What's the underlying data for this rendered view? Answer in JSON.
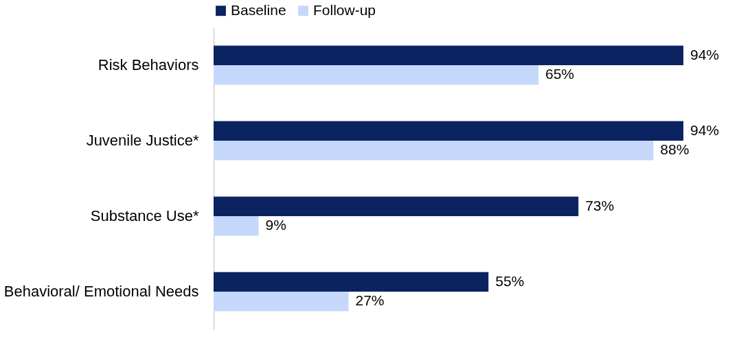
{
  "chart_data": {
    "type": "bar",
    "orientation": "horizontal",
    "categories": [
      "Risk Behaviors",
      "Juvenile Justice*",
      "Substance Use*",
      "Behavioral/ Emotional Needs"
    ],
    "series": [
      {
        "name": "Baseline",
        "color": "#0b2361",
        "values": [
          94,
          94,
          73,
          55
        ],
        "value_labels": [
          "94%",
          "94%",
          "73%",
          "55%"
        ]
      },
      {
        "name": "Follow-up",
        "color": "#c5d8fb",
        "values": [
          65,
          88,
          9,
          27
        ],
        "value_labels": [
          "65%",
          "88%",
          "9%",
          "27%"
        ]
      }
    ],
    "legend": "top",
    "grid": false
  }
}
